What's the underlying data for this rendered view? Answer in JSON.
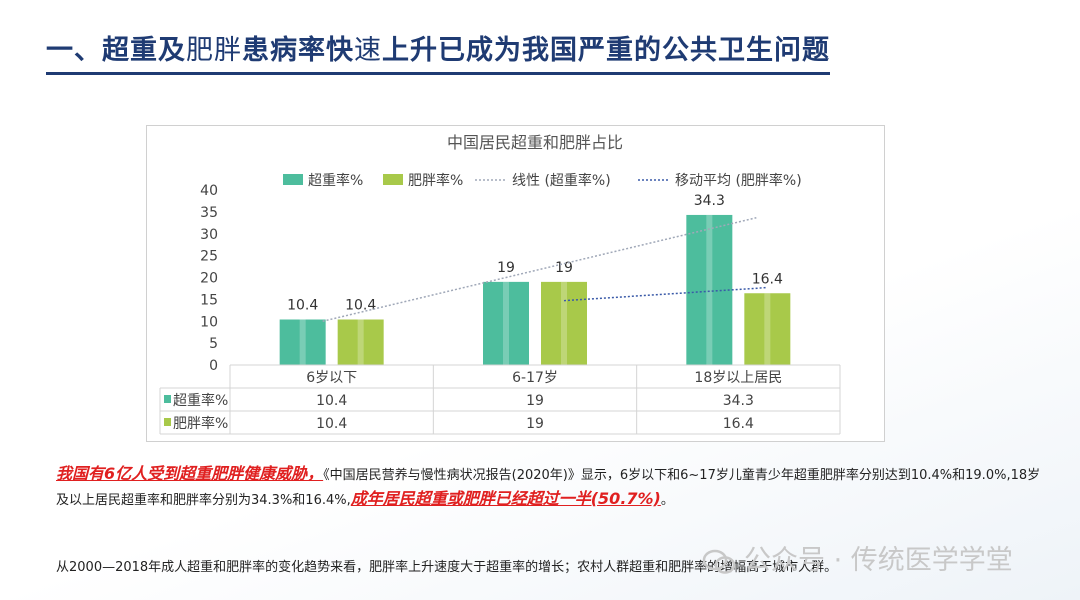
{
  "title": {
    "p1": "一、超重及",
    "p2": "肥胖",
    "p3": "患病率快",
    "p4": "速",
    "p5": "上升已成为我国严重的公共卫生问题"
  },
  "chart_data": {
    "type": "bar",
    "title": "中国居民超重和肥胖占比",
    "categories": [
      "6岁以下",
      "6-17岁",
      "18岁以上居民"
    ],
    "series": [
      {
        "name": "超重率%",
        "values": [
          10.4,
          19,
          34.3
        ],
        "color": "#4dbd9d"
      },
      {
        "name": "肥胖率%",
        "values": [
          10.4,
          19,
          16.4
        ],
        "color": "#a8c94a"
      }
    ],
    "trend_lines": [
      {
        "name": "线性 (超重率%)",
        "style": "dotted",
        "color": "#a0a8b8"
      },
      {
        "name": "移动平均 (肥胖率%)",
        "style": "dotted",
        "color": "#3a5aa8"
      }
    ],
    "ylim": [
      0,
      40
    ],
    "yticks": [
      0,
      5,
      10,
      15,
      20,
      25,
      30,
      35,
      40
    ],
    "data_labels": [
      [
        "10.4",
        "19",
        "34.3"
      ],
      [
        "10.4",
        "19",
        "16.4"
      ]
    ],
    "table": {
      "rows": [
        {
          "label": "超重率%",
          "values": [
            "10.4",
            "19",
            "34.3"
          ]
        },
        {
          "label": "肥胖率%",
          "values": [
            "10.4",
            "19",
            "16.4"
          ]
        }
      ]
    },
    "legend_position": "top",
    "grid": false
  },
  "para1": {
    "red_a": "我国有6亿人受到超重肥胖健康威胁，",
    "body": "《中国居民营养与慢性病状况报告(2020年)》显示，6岁以下和6~17岁儿童青少年超重肥胖率分别达到10.4%和19.0%,18岁及以上居民超重率和肥胖率分别为34.3%和16.4%,",
    "red_b": "成年居民超重或肥胖已经超过一半(50.7%)",
    "tail": "。"
  },
  "para2": "从2000—2018年成人超重和肥胖率的变化趋势来看，肥胖率上升速度大于超重率的增长；农村人群超重和肥胖率的增幅高于城市人群。",
  "watermark": "公众号 · 传统医学学堂"
}
